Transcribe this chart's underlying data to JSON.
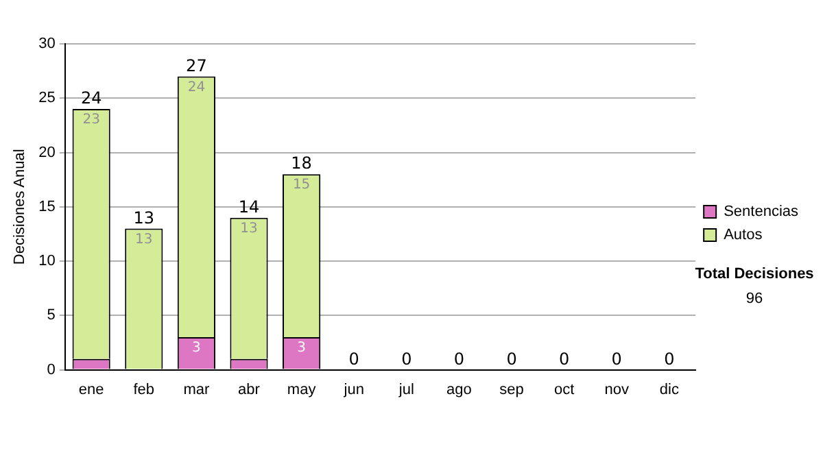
{
  "chart_data": {
    "type": "bar",
    "stacked": true,
    "ylabel": "Decisiones Anual",
    "categories": [
      "ene",
      "feb",
      "mar",
      "abr",
      "may",
      "jun",
      "jul",
      "ago",
      "sep",
      "oct",
      "nov",
      "dic"
    ],
    "series": [
      {
        "name": "Sentencias",
        "color": "#dd77c4",
        "values": [
          1,
          0,
          3,
          1,
          3,
          0,
          0,
          0,
          0,
          0,
          0,
          0
        ],
        "value_labels": [
          null,
          null,
          "3",
          null,
          "3",
          null,
          null,
          null,
          null,
          null,
          null,
          null
        ]
      },
      {
        "name": "Autos",
        "color": "#d4ec98",
        "values": [
          23,
          13,
          24,
          13,
          15,
          0,
          0,
          0,
          0,
          0,
          0,
          0
        ],
        "value_labels": [
          "23",
          "13",
          "24",
          "13",
          "15",
          null,
          null,
          null,
          null,
          null,
          null,
          null
        ]
      }
    ],
    "totals": [
      "24",
      "13",
      "27",
      "14",
      "18",
      "0",
      "0",
      "0",
      "0",
      "0",
      "0",
      "0"
    ],
    "ylim": [
      0,
      30
    ],
    "yticks": [
      0,
      5,
      10,
      15,
      20,
      25,
      30
    ],
    "grid": "y",
    "legend": "right",
    "annotations": [
      "Total Decisiones",
      "96"
    ]
  }
}
